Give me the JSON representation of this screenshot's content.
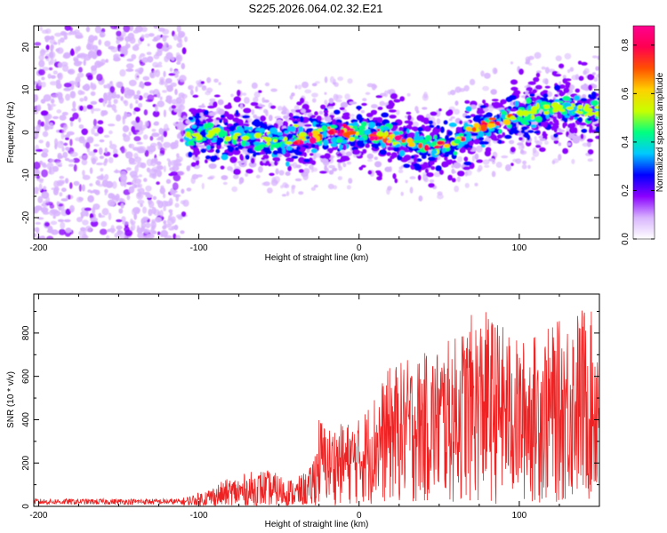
{
  "title": "S225.2026.064.02.32.E21",
  "chart_data": [
    {
      "type": "heatmap",
      "xlabel": "Height of straight line (km)",
      "ylabel": "Frequency (Hz)",
      "xlim": [
        -203,
        150
      ],
      "ylim": [
        -25,
        25
      ],
      "xticks": [
        -200,
        -100,
        0,
        100
      ],
      "yticks": [
        -20,
        -10,
        0,
        10,
        20
      ],
      "colorbar": {
        "label": "Normalized spectral amplitude",
        "range": [
          0.0,
          0.88
        ],
        "ticks": [
          0.0,
          0.2,
          0.4,
          0.6,
          0.8
        ],
        "colors": [
          "#ffffff",
          "#d8b4fe",
          "#8b00ff",
          "#0000ff",
          "#00c8ff",
          "#00ff80",
          "#c8ff00",
          "#ffd000",
          "#ff5000",
          "#ff0050",
          "#ff0090"
        ]
      },
      "ridge": {
        "x": [
          -110,
          -90,
          -70,
          -50,
          -30,
          -15,
          0,
          20,
          40,
          50,
          60,
          75,
          90,
          110,
          130,
          150
        ],
        "y": [
          -1,
          0,
          -1,
          -2,
          -1,
          0,
          0,
          -1,
          -3,
          -3,
          -2,
          1,
          3,
          5,
          6,
          5
        ],
        "peak_amplitude": 0.88
      },
      "noise_region": {
        "x": [
          -203,
          -108
        ],
        "y": [
          -25,
          25
        ]
      }
    },
    {
      "type": "line",
      "xlabel": "Height of straight line (km)",
      "ylabel": "SNR (10 * v/v)",
      "xlim": [
        -203,
        150
      ],
      "ylim": [
        0,
        980
      ],
      "xticks": [
        -200,
        -100,
        0,
        100
      ],
      "yticks": [
        0,
        200,
        400,
        600,
        800
      ],
      "color": "#ee2222",
      "envelope": {
        "x": [
          -203,
          -110,
          -100,
          -80,
          -60,
          -40,
          -30,
          -25,
          -20,
          -10,
          0,
          20,
          40,
          60,
          70,
          80,
          100,
          120,
          140,
          150
        ],
        "y": [
          35,
          35,
          60,
          130,
          170,
          120,
          180,
          420,
          360,
          380,
          400,
          650,
          700,
          780,
          880,
          900,
          760,
          830,
          930,
          860
        ]
      }
    }
  ]
}
